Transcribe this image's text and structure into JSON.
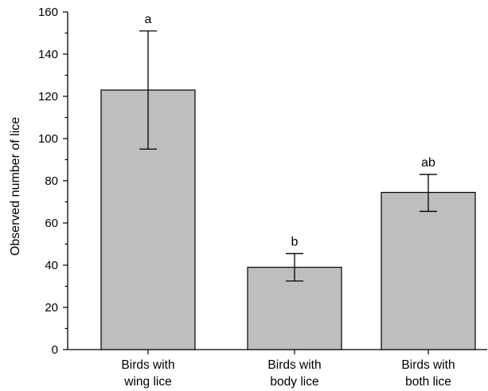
{
  "chart_data": {
    "type": "bar",
    "categories": [
      [
        "Birds with",
        "wing lice"
      ],
      [
        "Birds with",
        "body lice"
      ],
      [
        "Birds with",
        "both lice"
      ]
    ],
    "values": [
      123,
      39,
      74.5
    ],
    "error_low": [
      95,
      32.5,
      65.5
    ],
    "error_high": [
      151,
      45.5,
      83
    ],
    "significance_labels": [
      "a",
      "b",
      "ab"
    ],
    "ylabel": "Observed number of lice",
    "xlabel": "",
    "ylim": [
      0,
      160
    ],
    "yticks_major": [
      0,
      20,
      40,
      60,
      80,
      100,
      120,
      140,
      160
    ],
    "yticks_minor": [
      10,
      30,
      50,
      70,
      90,
      110,
      130,
      150
    ],
    "grid": false,
    "bar_color": "#bebebe"
  }
}
